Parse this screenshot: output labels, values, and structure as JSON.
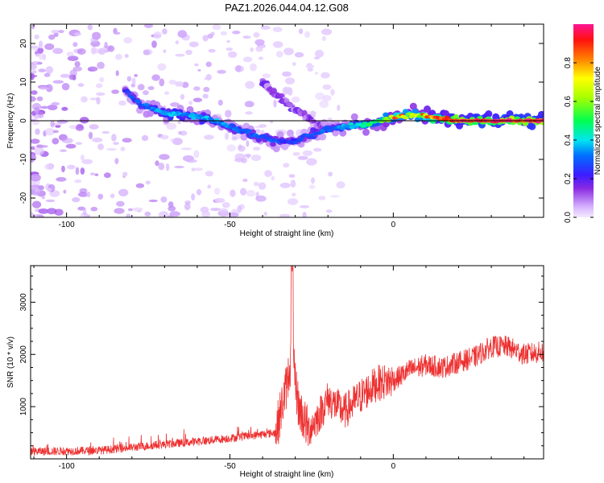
{
  "figure": {
    "title": "PAZ1.2026.044.04.12.G08"
  },
  "chart_data": [
    {
      "type": "heatmap",
      "name": "spectrogram",
      "xlabel": "Height of straight line (km)",
      "ylabel": "Frequency (Hz)",
      "xlim": [
        -111,
        46
      ],
      "ylim": [
        -25,
        25
      ],
      "x_ticks": [
        -100,
        -50,
        0
      ],
      "y_ticks": [
        -20,
        -10,
        0,
        10,
        20
      ],
      "colorbar": {
        "label": "Normalized spectral amplitude",
        "range": [
          0,
          1
        ],
        "ticks": [
          0.0,
          0.2,
          0.4,
          0.6,
          0.8
        ],
        "tick_labels": [
          "0.0",
          "0.2",
          "0.4",
          "0.6",
          "0.8"
        ]
      },
      "ridge_centerline": [
        {
          "x": -82,
          "y": 8
        },
        {
          "x": -77,
          "y": 4
        },
        {
          "x": -70,
          "y": 2
        },
        {
          "x": -63,
          "y": 1.5
        },
        {
          "x": -57,
          "y": 0.5
        },
        {
          "x": -50,
          "y": -1.5
        },
        {
          "x": -43,
          "y": -3.5
        },
        {
          "x": -37,
          "y": -5
        },
        {
          "x": -31,
          "y": -5.5
        },
        {
          "x": -26,
          "y": -4
        },
        {
          "x": -20,
          "y": -2
        },
        {
          "x": -15,
          "y": -1.5
        },
        {
          "x": -8,
          "y": -1
        },
        {
          "x": -2,
          "y": 0.5
        },
        {
          "x": 5,
          "y": 1.5
        },
        {
          "x": 12,
          "y": 1
        },
        {
          "x": 20,
          "y": 0
        },
        {
          "x": 30,
          "y": 0
        },
        {
          "x": 46,
          "y": 0
        }
      ],
      "secondary_ridge": [
        {
          "x": -40,
          "y": 10
        },
        {
          "x": -35,
          "y": 6
        },
        {
          "x": -30,
          "y": 3
        },
        {
          "x": -25,
          "y": 0
        },
        {
          "x": -21,
          "y": -2
        }
      ],
      "amplitude_along_ridge": [
        {
          "x": -82,
          "a": 0.25
        },
        {
          "x": -70,
          "a": 0.35
        },
        {
          "x": -55,
          "a": 0.35
        },
        {
          "x": -45,
          "a": 0.3
        },
        {
          "x": -30,
          "a": 0.25
        },
        {
          "x": -20,
          "a": 0.3
        },
        {
          "x": -10,
          "a": 0.45
        },
        {
          "x": 0,
          "a": 0.6
        },
        {
          "x": 10,
          "a": 0.65
        },
        {
          "x": 15,
          "a": 0.8
        },
        {
          "x": 20,
          "a": 0.95
        },
        {
          "x": 46,
          "a": 0.95
        }
      ]
    },
    {
      "type": "line",
      "name": "snr",
      "xlabel": "Height of straight line (km)",
      "ylabel": "SNR (10 * v/v)",
      "xlim": [
        -111,
        46
      ],
      "ylim": [
        0,
        3700
      ],
      "x_ticks": [
        -100,
        -50,
        0
      ],
      "y_ticks": [
        1000,
        2000,
        3000
      ],
      "series_color": "#ee3030",
      "trend": [
        {
          "x": -111,
          "y": 140
        },
        {
          "x": -90,
          "y": 160
        },
        {
          "x": -75,
          "y": 250
        },
        {
          "x": -60,
          "y": 330
        },
        {
          "x": -45,
          "y": 430
        },
        {
          "x": -36,
          "y": 500
        },
        {
          "x": -33,
          "y": 1300
        },
        {
          "x": -31,
          "y": 2000
        },
        {
          "x": -29,
          "y": 1000
        },
        {
          "x": -26,
          "y": 550
        },
        {
          "x": -23,
          "y": 800
        },
        {
          "x": -20,
          "y": 1150
        },
        {
          "x": -15,
          "y": 900
        },
        {
          "x": -10,
          "y": 1200
        },
        {
          "x": -5,
          "y": 1450
        },
        {
          "x": 0,
          "y": 1500
        },
        {
          "x": 5,
          "y": 1700
        },
        {
          "x": 10,
          "y": 1800
        },
        {
          "x": 15,
          "y": 1750
        },
        {
          "x": 20,
          "y": 1850
        },
        {
          "x": 25,
          "y": 1950
        },
        {
          "x": 30,
          "y": 2150
        },
        {
          "x": 35,
          "y": 2150
        },
        {
          "x": 40,
          "y": 2000
        },
        {
          "x": 46,
          "y": 2050
        }
      ],
      "peak": {
        "x": -31,
        "y": 3650
      }
    }
  ]
}
